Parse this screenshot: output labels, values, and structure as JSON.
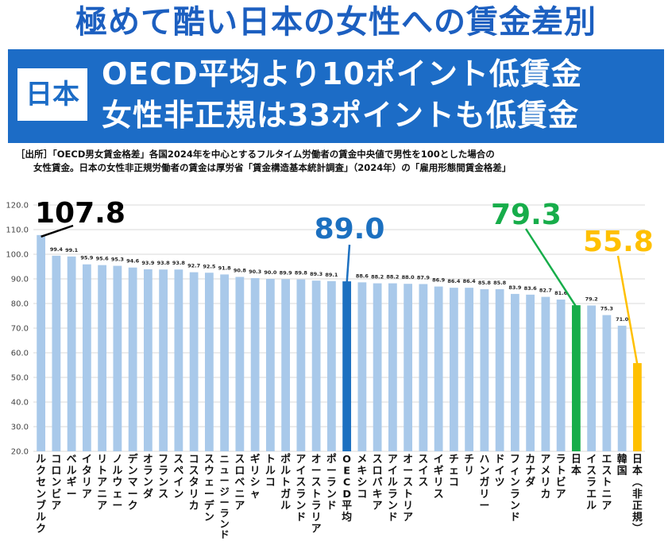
{
  "title": "極めて酷い日本の女性への賃金差別",
  "banner": {
    "badge": "日本",
    "line1": "OECD平均より10ポイント低賃金",
    "line2": "女性非正規は33ポイントも低賃金"
  },
  "source": {
    "line1": "［出所］「OECD男女賃金格差」各国2024年を中心とするフルタイム労働者の賃金中央値で男性を100とした場合の",
    "line2": "女性賃金。日本の女性非正規労働者の賃金は厚労省「賃金構造基本統計調査」（2024年）の「雇用形態間賃金格差」"
  },
  "colors": {
    "accent": "#1c6cc6",
    "bar": "#a9c9ea",
    "oecd_bar": "#1c70c0",
    "japan_bar": "#17ad4a",
    "nonregular_bar": "#ffc000"
  },
  "chart_data": {
    "type": "bar",
    "title": "",
    "xlabel": "",
    "ylabel": "",
    "ylim": [
      20,
      120
    ],
    "yticks": [
      "20.0",
      "30.0",
      "40.0",
      "50.0",
      "60.0",
      "70.0",
      "80.0",
      "90.0",
      "100.0",
      "110.0",
      "120.0"
    ],
    "grid": true,
    "categories": [
      "ルクセンブルク",
      "コロンビア",
      "ベルギー",
      "イタリア",
      "リトアニア",
      "ノルウェー",
      "デンマーク",
      "オランダ",
      "フランス",
      "スペイン",
      "コスタリカ",
      "スウェーデン",
      "ニュージーランド",
      "スロベニア",
      "ギリシャ",
      "トルコ",
      "ポルトガル",
      "アイスランド",
      "オーストラリア",
      "ポーランド",
      "OECD平均",
      "メキシコ",
      "スロバキア",
      "アイルランド",
      "オーストリア",
      "スイス",
      "イギリス",
      "チェコ",
      "チリ",
      "ハンガリー",
      "ドイツ",
      "フィンランド",
      "カナダ",
      "アメリカ",
      "ラトビア",
      "日本",
      "イスラエル",
      "エストニア",
      "韓国",
      "日本（非正規）"
    ],
    "values": [
      107.8,
      99.4,
      99.1,
      95.9,
      95.6,
      95.3,
      94.6,
      93.9,
      93.8,
      93.8,
      92.7,
      92.5,
      91.8,
      90.8,
      90.3,
      90.0,
      89.9,
      89.8,
      89.3,
      89.1,
      89.0,
      88.6,
      88.2,
      88.2,
      88.0,
      87.9,
      86.9,
      86.4,
      86.4,
      85.8,
      85.8,
      83.9,
      83.6,
      82.7,
      81.6,
      79.3,
      79.2,
      75.3,
      71.0,
      55.8
    ],
    "value_labels": [
      "107.8",
      "99.4",
      "99.1",
      "95.9",
      "95.6",
      "95.3",
      "94.6",
      "93.9",
      "93.8",
      "93.8",
      "92.7",
      "92.5",
      "91.8",
      "90.8",
      "90.3",
      "90.0",
      "89.9",
      "89.8",
      "89.3",
      "89.1",
      "89.0",
      "88.6",
      "88.2",
      "88.2",
      "88.0",
      "87.9",
      "86.9",
      "86.4",
      "86.4",
      "85.8",
      "85.8",
      "83.9",
      "83.6",
      "82.7",
      "81.6",
      "79.3",
      "79.2",
      "75.3",
      "71.0",
      "55.8"
    ],
    "highlights": [
      {
        "index": 0,
        "label": "107.8",
        "color": "#000000"
      },
      {
        "index": 20,
        "label": "89.0",
        "color": "#1c70c0"
      },
      {
        "index": 35,
        "label": "79.3",
        "color": "#17ad4a"
      },
      {
        "index": 39,
        "label": "55.8",
        "color": "#ffc000"
      }
    ]
  }
}
